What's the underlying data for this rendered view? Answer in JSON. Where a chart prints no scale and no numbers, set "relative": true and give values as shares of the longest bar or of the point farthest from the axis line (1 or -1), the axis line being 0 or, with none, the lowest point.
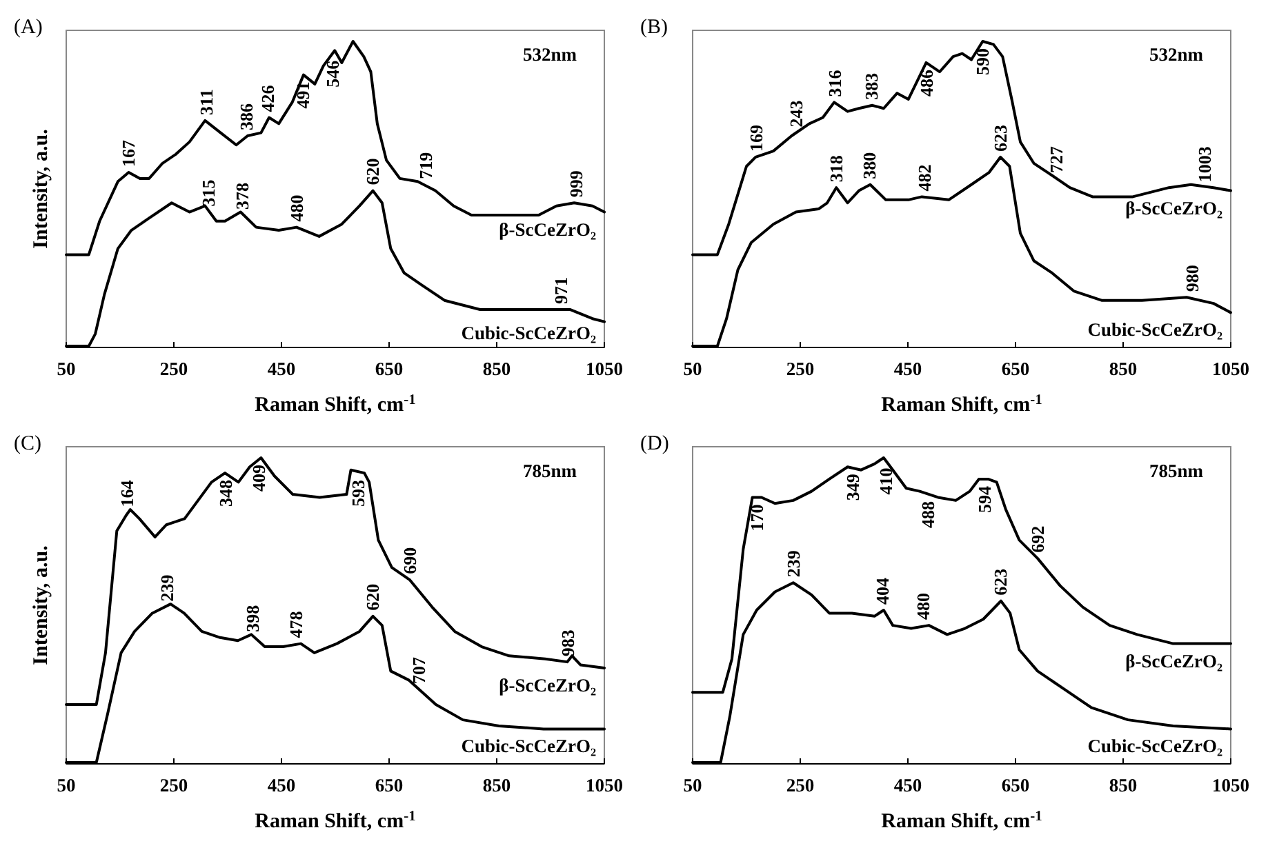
{
  "chart_data": [
    {
      "type": "line",
      "title": "(A)",
      "xlabel": "Raman Shift, cm$^{-1}$",
      "ylabel": "Intensity, a.u.",
      "relative": true,
      "xlim": [
        50,
        1050
      ],
      "xticks": [
        50,
        250,
        450,
        650,
        850,
        1050
      ],
      "series": [
        {
          "name": "β-ScCeZrO₂",
          "color": "#000000",
          "x": [
            50,
            92,
            112,
            146,
            166,
            187,
            204,
            229,
            254,
            279,
            308,
            337,
            366,
            387,
            412,
            427,
            445,
            470,
            491,
            512,
            528,
            549,
            562,
            583,
            603,
            616,
            628,
            645,
            670,
            703,
            736,
            770,
            803,
            861,
            928,
            961,
            994,
            1028,
            1050
          ],
          "values": [
            0.3,
            0.3,
            0.41,
            0.54,
            0.57,
            0.55,
            0.55,
            0.6,
            0.63,
            0.67,
            0.74,
            0.7,
            0.66,
            0.69,
            0.7,
            0.75,
            0.73,
            0.8,
            0.89,
            0.86,
            0.92,
            0.97,
            0.93,
            1.0,
            0.95,
            0.9,
            0.73,
            0.61,
            0.55,
            0.54,
            0.51,
            0.46,
            0.43,
            0.43,
            0.43,
            0.46,
            0.47,
            0.46,
            0.44
          ]
        },
        {
          "name": "Cubic-ScCeZrO₂",
          "color": "#000000",
          "x": [
            50,
            92,
            104,
            121,
            146,
            171,
            204,
            246,
            279,
            308,
            329,
            345,
            374,
            403,
            445,
            478,
            520,
            562,
            595,
            620,
            637,
            653,
            678,
            711,
            753,
            819,
            861,
            944,
            986,
            1028,
            1050
          ],
          "values": [
            0,
            0.0,
            0.04,
            0.17,
            0.32,
            0.38,
            0.42,
            0.47,
            0.44,
            0.46,
            0.41,
            0.41,
            0.44,
            0.39,
            0.38,
            0.39,
            0.36,
            0.4,
            0.46,
            0.51,
            0.47,
            0.32,
            0.24,
            0.2,
            0.15,
            0.12,
            0.12,
            0.12,
            0.12,
            0.09,
            0.08
          ]
        }
      ],
      "annotations": [
        "532nm",
        {
          "text": "167",
          "x": 167,
          "y": 0.57
        },
        {
          "text": "311",
          "x": 311,
          "y": 0.74
        },
        {
          "text": "386",
          "x": 386,
          "y": 0.69
        },
        {
          "text": "426",
          "x": 426,
          "y": 0.75
        },
        {
          "text": "491",
          "x": 491,
          "y": 0.89
        },
        {
          "text": "546",
          "x": 546,
          "y": 0.96
        },
        {
          "text": "719",
          "x": 719,
          "y": 0.53
        },
        {
          "text": "999",
          "x": 999,
          "y": 0.47
        },
        {
          "text": "315",
          "x": 315,
          "y": 0.44
        },
        {
          "text": "378",
          "x": 378,
          "y": 0.43
        },
        {
          "text": "480",
          "x": 480,
          "y": 0.39
        },
        {
          "text": "620",
          "x": 620,
          "y": 0.51
        },
        {
          "text": "971",
          "x": 971,
          "y": 0.12
        }
      ]
    },
    {
      "type": "line",
      "title": "(B)",
      "xlabel": "Raman Shift, cm$^{-1}$",
      "relative": true,
      "xlim": [
        50,
        1050
      ],
      "xticks": [
        50,
        250,
        450,
        650,
        850,
        1050
      ],
      "series": [
        {
          "name": "β-ScCeZrO₂",
          "color": "#000000",
          "x": [
            50,
            96,
            117,
            150,
            167,
            200,
            234,
            267,
            292,
            313,
            338,
            359,
            384,
            405,
            430,
            451,
            484,
            509,
            534,
            551,
            568,
            589,
            609,
            626,
            643,
            659,
            684,
            718,
            751,
            793,
            868,
            935,
            976,
            1018,
            1050
          ],
          "values": [
            0.3,
            0.3,
            0.4,
            0.59,
            0.62,
            0.64,
            0.69,
            0.73,
            0.75,
            0.8,
            0.77,
            0.78,
            0.79,
            0.78,
            0.83,
            0.81,
            0.93,
            0.9,
            0.95,
            0.96,
            0.94,
            1.0,
            0.99,
            0.95,
            0.81,
            0.67,
            0.6,
            0.56,
            0.52,
            0.49,
            0.49,
            0.52,
            0.53,
            0.52,
            0.51
          ]
        },
        {
          "name": "Cubic-ScCeZrO₂",
          "color": "#000000",
          "x": [
            50,
            96,
            113,
            134,
            159,
            200,
            242,
            284,
            300,
            317,
            338,
            359,
            380,
            409,
            451,
            476,
            526,
            568,
            601,
            622,
            639,
            659,
            684,
            718,
            759,
            810,
            885,
            968,
            1018,
            1050
          ],
          "values": [
            0,
            0.0,
            0.09,
            0.25,
            0.34,
            0.4,
            0.44,
            0.45,
            0.47,
            0.52,
            0.47,
            0.51,
            0.53,
            0.48,
            0.48,
            0.49,
            0.48,
            0.53,
            0.57,
            0.62,
            0.59,
            0.37,
            0.28,
            0.24,
            0.18,
            0.15,
            0.15,
            0.16,
            0.14,
            0.11
          ]
        }
      ],
      "annotations": [
        "532nm",
        {
          "text": "169",
          "x": 169,
          "y": 0.62
        },
        {
          "text": "243",
          "x": 243,
          "y": 0.7
        },
        {
          "text": "316",
          "x": 316,
          "y": 0.8
        },
        {
          "text": "383",
          "x": 383,
          "y": 0.79
        },
        {
          "text": "486",
          "x": 486,
          "y": 0.93
        },
        {
          "text": "590",
          "x": 590,
          "y": 1.0
        },
        {
          "text": "727",
          "x": 727,
          "y": 0.55
        },
        {
          "text": "1003",
          "x": 1003,
          "y": 0.52
        },
        {
          "text": "318",
          "x": 318,
          "y": 0.52
        },
        {
          "text": "380",
          "x": 380,
          "y": 0.53
        },
        {
          "text": "482",
          "x": 482,
          "y": 0.49
        },
        {
          "text": "623",
          "x": 623,
          "y": 0.62
        },
        {
          "text": "980",
          "x": 980,
          "y": 0.16
        }
      ]
    },
    {
      "type": "line",
      "title": "(C)",
      "xlabel": "Raman Shift, cm$^{-1}$",
      "ylabel": "Intensity, a.u.",
      "relative": true,
      "xlim": [
        50,
        1050
      ],
      "xticks": [
        50,
        250,
        450,
        650,
        850,
        1050
      ],
      "series": [
        {
          "name": "β-ScCeZrO₂",
          "color": "#000000",
          "x": [
            50,
            106,
            123,
            144,
            161,
            169,
            186,
            215,
            236,
            270,
            295,
            320,
            345,
            370,
            391,
            412,
            437,
            471,
            521,
            571,
            579,
            604,
            613,
            630,
            655,
            688,
            730,
            772,
            822,
            873,
            940,
            981,
            990,
            1006,
            1050
          ],
          "values": [
            0.19,
            0.19,
            0.36,
            0.76,
            0.81,
            0.83,
            0.8,
            0.74,
            0.78,
            0.8,
            0.86,
            0.92,
            0.95,
            0.92,
            0.97,
            1.0,
            0.94,
            0.88,
            0.87,
            0.88,
            0.96,
            0.95,
            0.92,
            0.73,
            0.64,
            0.6,
            0.51,
            0.43,
            0.38,
            0.35,
            0.34,
            0.33,
            0.35,
            0.32,
            0.31
          ]
        },
        {
          "name": "Cubic-ScCeZrO₂",
          "color": "#000000",
          "x": [
            50,
            106,
            127,
            152,
            177,
            210,
            244,
            269,
            302,
            336,
            369,
            394,
            419,
            453,
            486,
            511,
            553,
            595,
            620,
            637,
            653,
            687,
            737,
            787,
            854,
            937,
            1050
          ],
          "values": [
            0,
            0.0,
            0.16,
            0.36,
            0.43,
            0.49,
            0.52,
            0.49,
            0.43,
            0.41,
            0.4,
            0.42,
            0.38,
            0.38,
            0.39,
            0.36,
            0.39,
            0.43,
            0.48,
            0.45,
            0.3,
            0.27,
            0.19,
            0.14,
            0.12,
            0.11,
            0.11
          ]
        }
      ],
      "annotations": [
        "785nm",
        {
          "text": "164",
          "x": 164,
          "y": 0.82
        },
        {
          "text": "348",
          "x": 348,
          "y": 0.95
        },
        {
          "text": "409",
          "x": 409,
          "y": 1.0
        },
        {
          "text": "593",
          "x": 593,
          "y": 0.95
        },
        {
          "text": "690",
          "x": 690,
          "y": 0.6
        },
        {
          "text": "983",
          "x": 983,
          "y": 0.33
        },
        {
          "text": "239",
          "x": 239,
          "y": 0.51
        },
        {
          "text": "398",
          "x": 398,
          "y": 0.41
        },
        {
          "text": "478",
          "x": 478,
          "y": 0.39
        },
        {
          "text": "620",
          "x": 620,
          "y": 0.48
        },
        {
          "text": "707",
          "x": 707,
          "y": 0.24
        }
      ]
    },
    {
      "type": "line",
      "title": "(D)",
      "xlabel": "Raman Shift, cm$^{-1}$",
      "relative": true,
      "xlim": [
        50,
        1050
      ],
      "xticks": [
        50,
        250,
        450,
        650,
        850,
        1050
      ],
      "series": [
        {
          "name": "β-ScCeZrO₂",
          "color": "#000000",
          "x": [
            50,
            106,
            123,
            144,
            161,
            178,
            203,
            237,
            271,
            304,
            338,
            363,
            388,
            405,
            422,
            447,
            472,
            506,
            539,
            565,
            582,
            599,
            615,
            632,
            657,
            691,
            733,
            775,
            825,
            876,
            943,
            1002,
            1050
          ],
          "values": [
            0.23,
            0.23,
            0.34,
            0.7,
            0.87,
            0.87,
            0.85,
            0.86,
            0.89,
            0.93,
            0.97,
            0.96,
            0.98,
            1.0,
            0.96,
            0.9,
            0.89,
            0.87,
            0.86,
            0.89,
            0.93,
            0.93,
            0.92,
            0.83,
            0.73,
            0.67,
            0.58,
            0.51,
            0.45,
            0.42,
            0.39,
            0.39,
            0.39
          ]
        },
        {
          "name": "Cubic-ScCeZrO₂",
          "color": "#000000",
          "x": [
            50,
            102,
            119,
            144,
            169,
            203,
            237,
            271,
            304,
            346,
            388,
            405,
            422,
            456,
            489,
            523,
            556,
            590,
            623,
            640,
            657,
            691,
            741,
            791,
            859,
            943,
            1050
          ],
          "values": [
            0,
            0.0,
            0.15,
            0.42,
            0.5,
            0.56,
            0.59,
            0.55,
            0.49,
            0.49,
            0.48,
            0.5,
            0.45,
            0.44,
            0.45,
            0.42,
            0.44,
            0.47,
            0.53,
            0.49,
            0.37,
            0.3,
            0.24,
            0.18,
            0.14,
            0.12,
            0.11
          ]
        }
      ],
      "annotations": [
        "785nm",
        {
          "text": "170",
          "x": 170,
          "y": 0.87
        },
        {
          "text": "349",
          "x": 349,
          "y": 0.97
        },
        {
          "text": "410",
          "x": 410,
          "y": 0.99
        },
        {
          "text": "488",
          "x": 488,
          "y": 0.88
        },
        {
          "text": "594",
          "x": 594,
          "y": 0.93
        },
        {
          "text": "692",
          "x": 692,
          "y": 0.67
        },
        {
          "text": "239",
          "x": 239,
          "y": 0.59
        },
        {
          "text": "404",
          "x": 404,
          "y": 0.5
        },
        {
          "text": "480",
          "x": 480,
          "y": 0.45
        },
        {
          "text": "623",
          "x": 623,
          "y": 0.53
        }
      ]
    }
  ]
}
